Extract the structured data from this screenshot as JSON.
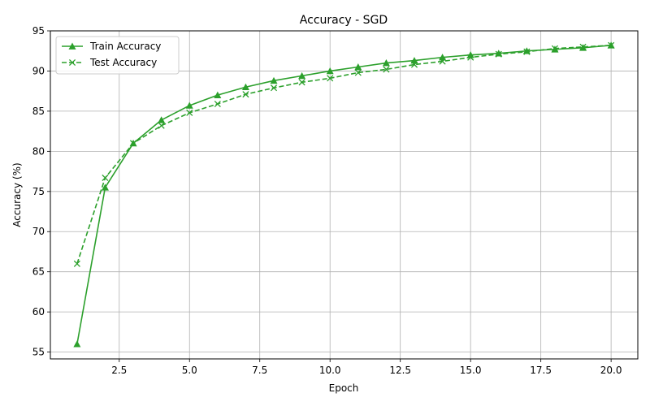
{
  "chart_data": {
    "type": "line",
    "title": "Accuracy - SGD",
    "xlabel": "Epoch",
    "ylabel": "Accuracy (%)",
    "xlim": [
      0.05,
      20.95
    ],
    "ylim": [
      54.15,
      95.0
    ],
    "x_ticks": [
      2.5,
      5.0,
      7.5,
      10.0,
      12.5,
      15.0,
      17.5,
      20.0
    ],
    "x_tick_labels": [
      "2.5",
      "5.0",
      "7.5",
      "10.0",
      "12.5",
      "15.0",
      "17.5",
      "20.0"
    ],
    "y_ticks": [
      55,
      60,
      65,
      70,
      75,
      80,
      85,
      90,
      95
    ],
    "y_tick_labels": [
      "55",
      "60",
      "65",
      "70",
      "75",
      "80",
      "85",
      "90",
      "95"
    ],
    "grid": true,
    "legend_position": "top-left",
    "x": [
      1,
      2,
      3,
      4,
      5,
      6,
      7,
      8,
      9,
      10,
      11,
      12,
      13,
      14,
      15,
      16,
      17,
      18,
      19,
      20
    ],
    "series": [
      {
        "name": "Train Accuracy",
        "color": "#2ca02c",
        "line_style": "solid",
        "marker": "triangle-up",
        "values": [
          56.0,
          75.5,
          81.0,
          83.9,
          85.7,
          87.0,
          88.0,
          88.8,
          89.4,
          90.0,
          90.5,
          91.0,
          91.3,
          91.7,
          92.0,
          92.2,
          92.5,
          92.7,
          92.9,
          93.2
        ]
      },
      {
        "name": "Test Accuracy",
        "color": "#2ca02c",
        "line_style": "dashed",
        "marker": "x",
        "values": [
          66.0,
          76.7,
          81.0,
          83.2,
          84.8,
          85.9,
          87.1,
          87.9,
          88.6,
          89.1,
          89.8,
          90.2,
          90.8,
          91.2,
          91.7,
          92.1,
          92.4,
          92.8,
          93.0,
          93.2
        ]
      }
    ]
  }
}
